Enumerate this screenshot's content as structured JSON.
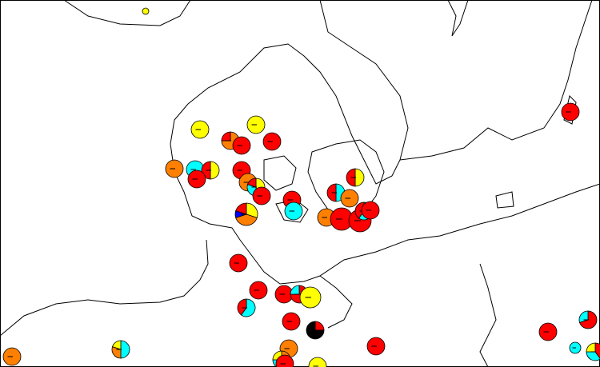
{
  "map": {
    "sites": [
      {
        "slices": [
          {
            "color": "#ffff00",
            "value": 100
          }
        ]
      },
      {
        "slices": [
          {
            "color": "#ffff00",
            "value": 100
          }
        ]
      },
      {
        "slices": [
          {
            "color": "#ffff00",
            "value": 100
          }
        ]
      },
      {
        "slices": [
          {
            "color": "#ff8000",
            "value": 75
          },
          {
            "color": "#ff0000",
            "value": 25
          }
        ]
      },
      {
        "slices": [
          {
            "color": "#ff0000",
            "value": 100
          }
        ]
      },
      {
        "slices": [
          {
            "color": "#ff0000",
            "value": 100
          }
        ]
      },
      {
        "slices": [
          {
            "color": "#ff8000",
            "value": 100
          }
        ]
      },
      {
        "slices": [
          {
            "color": "#00ffff",
            "value": 100
          }
        ]
      },
      {
        "slices": [
          {
            "color": "#ffff00",
            "value": 50
          },
          {
            "color": "#ff0000",
            "value": 50
          }
        ]
      },
      {
        "slices": [
          {
            "color": "#ff0000",
            "value": 100
          }
        ]
      },
      {
        "slices": [
          {
            "color": "#ff0000",
            "value": 100
          }
        ]
      },
      {
        "slices": [
          {
            "color": "#ff8000",
            "value": 100
          }
        ]
      },
      {
        "slices": [
          {
            "color": "#ffff00",
            "value": 50
          },
          {
            "color": "#00ffff",
            "value": 30
          },
          {
            "color": "#ff0000",
            "value": 20
          }
        ]
      },
      {
        "slices": [
          {
            "color": "#ff0000",
            "value": 100
          }
        ]
      },
      {
        "slices": [
          {
            "color": "#ffff00",
            "value": 50
          },
          {
            "color": "#ff0000",
            "value": 50
          }
        ]
      },
      {
        "slices": [
          {
            "color": "#00ffff",
            "value": 50
          },
          {
            "color": "#ff0000",
            "value": 50
          }
        ]
      },
      {
        "slices": [
          {
            "color": "#ff8000",
            "value": 100
          }
        ]
      },
      {
        "slices": [
          {
            "color": "#ff0000",
            "value": 100
          }
        ]
      },
      {
        "slices": [
          {
            "color": "#00ffff",
            "value": 100
          }
        ]
      },
      {
        "slices": [
          {
            "color": "#ffff00",
            "value": 30
          },
          {
            "color": "#ff8000",
            "value": 40
          },
          {
            "color": "#0000ff",
            "value": 10
          },
          {
            "color": "#ff0000",
            "value": 20
          }
        ]
      },
      {
        "slices": [
          {
            "color": "#ff8000",
            "value": 100
          }
        ]
      },
      {
        "slices": [
          {
            "color": "#ff0000",
            "value": 100
          }
        ]
      },
      {
        "slices": [
          {
            "color": "#ff0000",
            "value": 100
          }
        ]
      },
      {
        "slices": [
          {
            "color": "#00ffff",
            "value": 60
          },
          {
            "color": "#ff0000",
            "value": 40
          }
        ]
      },
      {
        "slices": [
          {
            "color": "#ff0000",
            "value": 100
          }
        ]
      },
      {
        "slices": [
          {
            "color": "#ff0000",
            "value": 100
          }
        ]
      },
      {
        "slices": [
          {
            "color": "#ff0000",
            "value": 100
          }
        ]
      },
      {
        "slices": [
          {
            "color": "#00ffff",
            "value": 60
          },
          {
            "color": "#ff0000",
            "value": 40
          }
        ]
      },
      {
        "slices": [
          {
            "color": "#ff0000",
            "value": 100
          }
        ]
      },
      {
        "slices": [
          {
            "color": "#ff0000",
            "value": 75
          },
          {
            "color": "#00ffff",
            "value": 25
          }
        ]
      },
      {
        "slices": [
          {
            "color": "#ffff00",
            "value": 100
          }
        ]
      },
      {
        "slices": [
          {
            "color": "#ff0000",
            "value": 100
          }
        ]
      },
      {
        "slices": [
          {
            "color": "#ff0000",
            "value": 25
          },
          {
            "color": "#000000",
            "value": 75
          }
        ]
      },
      {
        "slices": [
          {
            "color": "#ff8000",
            "value": 100
          }
        ]
      },
      {
        "slices": [
          {
            "color": "#ff8000",
            "value": 40
          },
          {
            "color": "#00ffff",
            "value": 35
          },
          {
            "color": "#ffff00",
            "value": 25
          }
        ]
      },
      {
        "slices": [
          {
            "color": "#ff0000",
            "value": 100
          }
        ]
      },
      {
        "slices": [
          {
            "color": "#ffff00",
            "value": 100
          }
        ]
      },
      {
        "slices": [
          {
            "color": "#ff0000",
            "value": 100
          }
        ]
      },
      {
        "slices": [
          {
            "color": "#ff0000",
            "value": 100
          }
        ]
      },
      {
        "slices": [
          {
            "color": "#ff0000",
            "value": 70
          },
          {
            "color": "#00ffff",
            "value": 30
          }
        ]
      },
      {
        "slices": [
          {
            "color": "#00ffff",
            "value": 100
          }
        ]
      },
      {
        "slices": [
          {
            "color": "#ff0000",
            "value": 40
          },
          {
            "color": "#00ffff",
            "value": 35
          },
          {
            "color": "#ffff00",
            "value": 25
          }
        ]
      },
      {
        "slices": [
          {
            "color": "#ff0000",
            "value": 100
          }
        ]
      },
      {
        "slices": [
          {
            "color": "#00ffff",
            "value": 50
          },
          {
            "color": "#ff8000",
            "value": 30
          },
          {
            "color": "#ffff00",
            "value": 20
          }
        ]
      },
      {
        "slices": [
          {
            "color": "#ff8000",
            "value": 100
          }
        ]
      }
    ]
  }
}
